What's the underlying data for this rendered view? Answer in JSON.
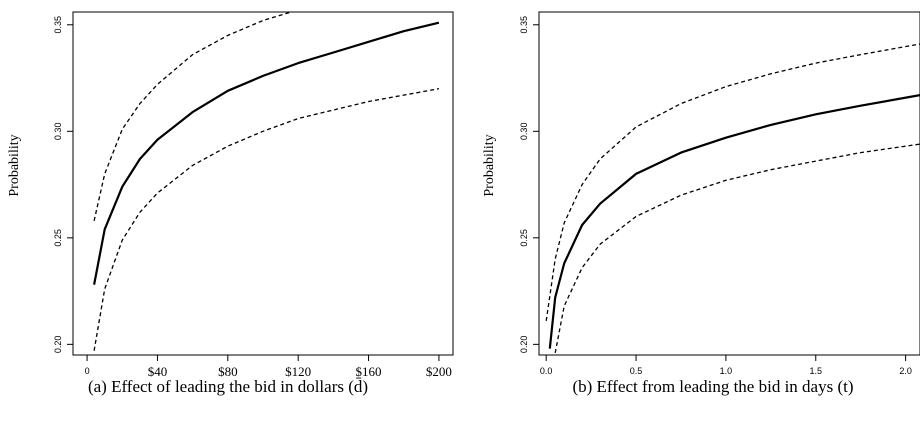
{
  "chart_data": [
    {
      "type": "line",
      "caption": "(a) Effect of leading the bid in dollars (d̄)",
      "xlabel": "",
      "ylabel": "Probability",
      "xlim": [
        -8,
        208
      ],
      "ylim": [
        0.195,
        0.356
      ],
      "x_ticks": [
        0,
        40,
        80,
        120,
        160,
        200
      ],
      "x_tick_labels": [
        "0",
        "$40",
        "$80",
        "$120",
        "$160",
        "$200"
      ],
      "y_ticks": [
        0.2,
        0.25,
        0.3,
        0.35
      ],
      "y_tick_labels": [
        "0.20",
        "0.25",
        "0.30",
        "0.35"
      ],
      "series": [
        {
          "style": "solid",
          "x": [
            4,
            10,
            20,
            30,
            40,
            60,
            80,
            100,
            120,
            140,
            160,
            180,
            200
          ],
          "y": [
            0.228,
            0.254,
            0.274,
            0.287,
            0.296,
            0.309,
            0.319,
            0.326,
            0.332,
            0.337,
            0.342,
            0.347,
            0.351
          ]
        },
        {
          "style": "dashed",
          "x": [
            4,
            10,
            20,
            30,
            40,
            60,
            80,
            100,
            116
          ],
          "y": [
            0.258,
            0.28,
            0.301,
            0.313,
            0.322,
            0.336,
            0.345,
            0.352,
            0.356
          ]
        },
        {
          "style": "dashed",
          "x": [
            4,
            10,
            20,
            30,
            40,
            60,
            80,
            100,
            120,
            140,
            160,
            180,
            200
          ],
          "y": [
            0.197,
            0.226,
            0.249,
            0.262,
            0.271,
            0.284,
            0.293,
            0.3,
            0.306,
            0.31,
            0.314,
            0.317,
            0.32
          ]
        }
      ]
    },
    {
      "type": "line",
      "caption": "(b) Effect from leading the bid in days (t)",
      "xlabel": "",
      "ylabel": "Probability",
      "xlim": [
        -0.04,
        2.08
      ],
      "ylim": [
        0.195,
        0.356
      ],
      "x_ticks": [
        0.0,
        0.5,
        1.0,
        1.5,
        2.0
      ],
      "x_tick_labels": [
        "0.0",
        "0.5",
        "1.0",
        "1.5",
        "2.0"
      ],
      "y_ticks": [
        0.2,
        0.25,
        0.3,
        0.35
      ],
      "y_tick_labels": [
        "0.20",
        "0.25",
        "0.30",
        "0.35"
      ],
      "series": [
        {
          "style": "solid",
          "x": [
            0.02,
            0.05,
            0.1,
            0.2,
            0.3,
            0.5,
            0.75,
            1.0,
            1.25,
            1.5,
            1.75,
            2.08
          ],
          "y": [
            0.198,
            0.222,
            0.238,
            0.256,
            0.266,
            0.28,
            0.29,
            0.297,
            0.303,
            0.308,
            0.312,
            0.317
          ]
        },
        {
          "style": "dashed",
          "x": [
            0.0,
            0.05,
            0.1,
            0.2,
            0.3,
            0.5,
            0.75,
            1.0,
            1.25,
            1.5,
            1.75,
            2.08
          ],
          "y": [
            0.211,
            0.24,
            0.257,
            0.275,
            0.287,
            0.302,
            0.313,
            0.321,
            0.327,
            0.332,
            0.336,
            0.341
          ]
        },
        {
          "style": "dashed",
          "x": [
            0.05,
            0.1,
            0.2,
            0.3,
            0.5,
            0.75,
            1.0,
            1.25,
            1.5,
            1.75,
            2.08
          ],
          "y": [
            0.196,
            0.218,
            0.236,
            0.247,
            0.26,
            0.27,
            0.277,
            0.282,
            0.286,
            0.29,
            0.294
          ]
        }
      ]
    }
  ]
}
